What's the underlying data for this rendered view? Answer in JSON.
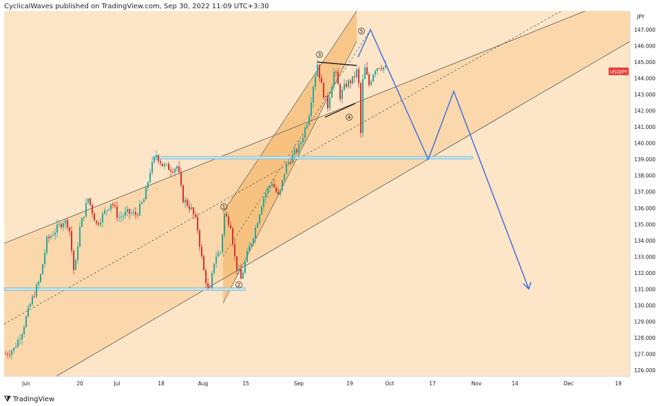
{
  "header": {
    "text": "CyclicalWaves published on TradingView.com, Sep 30, 2022 11:09 UTC+3:30"
  },
  "footer": {
    "brand": "TradingView"
  },
  "chart_data": {
    "type": "candlestick",
    "symbol": "USDJPY",
    "currency_label": "JPY",
    "y_range": [
      125.6,
      148.2
    ],
    "y_ticks": [
      "126.000",
      "127.000",
      "128.000",
      "129.000",
      "130.000",
      "131.000",
      "132.000",
      "133.000",
      "134.000",
      "135.000",
      "136.000",
      "137.000",
      "138.000",
      "139.000",
      "140.000",
      "141.000",
      "142.000",
      "143.000",
      "144.000",
      "145.000",
      "146.000",
      "147.000"
    ],
    "x_labels": [
      "Jun",
      "20",
      "Jul",
      "18",
      "Aug",
      "15",
      "Sep",
      "19",
      "Oct",
      "17",
      "Nov",
      "14",
      "Dec",
      "19"
    ],
    "last_price_badge": "USDJPY",
    "wave_labels": [
      "1",
      "2",
      "3",
      "4",
      "5"
    ],
    "horizontal_levels": [
      131.0,
      139.1
    ],
    "projection_path_prices": [
      147.0,
      139.0,
      143.2,
      131.0
    ],
    "colors": {
      "up": "#26a69a",
      "down": "#d32f2f",
      "channel": "#f7c98b",
      "channel_inner": "#f3b56a",
      "projection": "#3b6fe0",
      "level": "#7fb7c9",
      "badge": "#e53935"
    }
  }
}
